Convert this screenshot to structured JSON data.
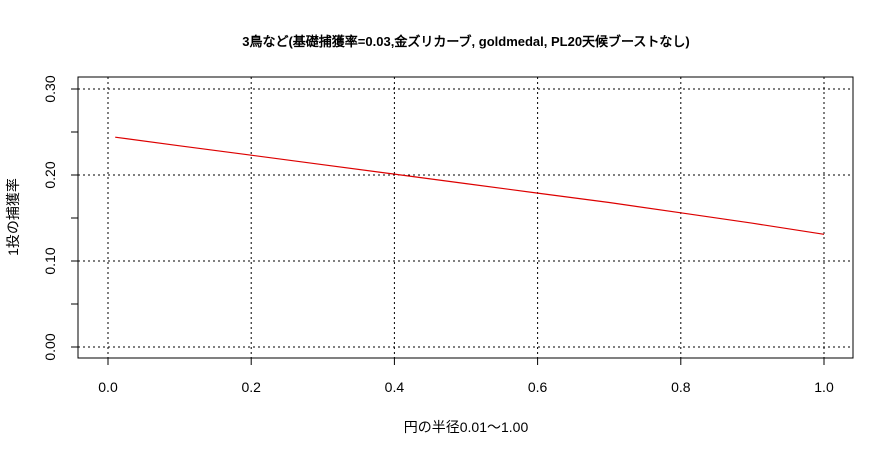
{
  "chart_data": {
    "type": "line",
    "title": "3鳥など(基礎捕獲率=0.03,金ズリカーブ, goldmedal, PL20天候ブーストなし)",
    "xlabel": "円の半径0.01～1.00",
    "ylabel": "1投の捕獲率",
    "xlim": [
      -0.04,
      1.04
    ],
    "ylim": [
      -0.012,
      0.312
    ],
    "x_ticks": [
      0.0,
      0.2,
      0.4,
      0.6,
      0.8,
      1.0
    ],
    "x_tick_labels": [
      "0.0",
      "0.2",
      "0.4",
      "0.6",
      "0.8",
      "1.0"
    ],
    "y_ticks": [
      0.0,
      0.05,
      0.1,
      0.15,
      0.2,
      0.25,
      0.3
    ],
    "y_tick_labels": [
      "0.00",
      "",
      "0.10",
      "",
      "0.20",
      "",
      "0.30"
    ],
    "grid": true,
    "grid_lines_x": [
      0.0,
      0.2,
      0.4,
      0.6,
      0.8,
      1.0
    ],
    "grid_lines_y": [
      0.0,
      0.1,
      0.2,
      0.3
    ],
    "legend": null,
    "series": [
      {
        "name": "1投の捕獲率",
        "color": "#dd0000",
        "x": [
          0.01,
          0.1,
          0.2,
          0.3,
          0.4,
          0.5,
          0.6,
          0.7,
          0.8,
          0.9,
          1.0
        ],
        "y": [
          0.244,
          0.234,
          0.223,
          0.212,
          0.201,
          0.19,
          0.179,
          0.168,
          0.156,
          0.144,
          0.131
        ]
      }
    ]
  },
  "colors": {
    "line": "#dd0000",
    "axis": "#000000",
    "grid": "#000000",
    "background": "#ffffff"
  }
}
